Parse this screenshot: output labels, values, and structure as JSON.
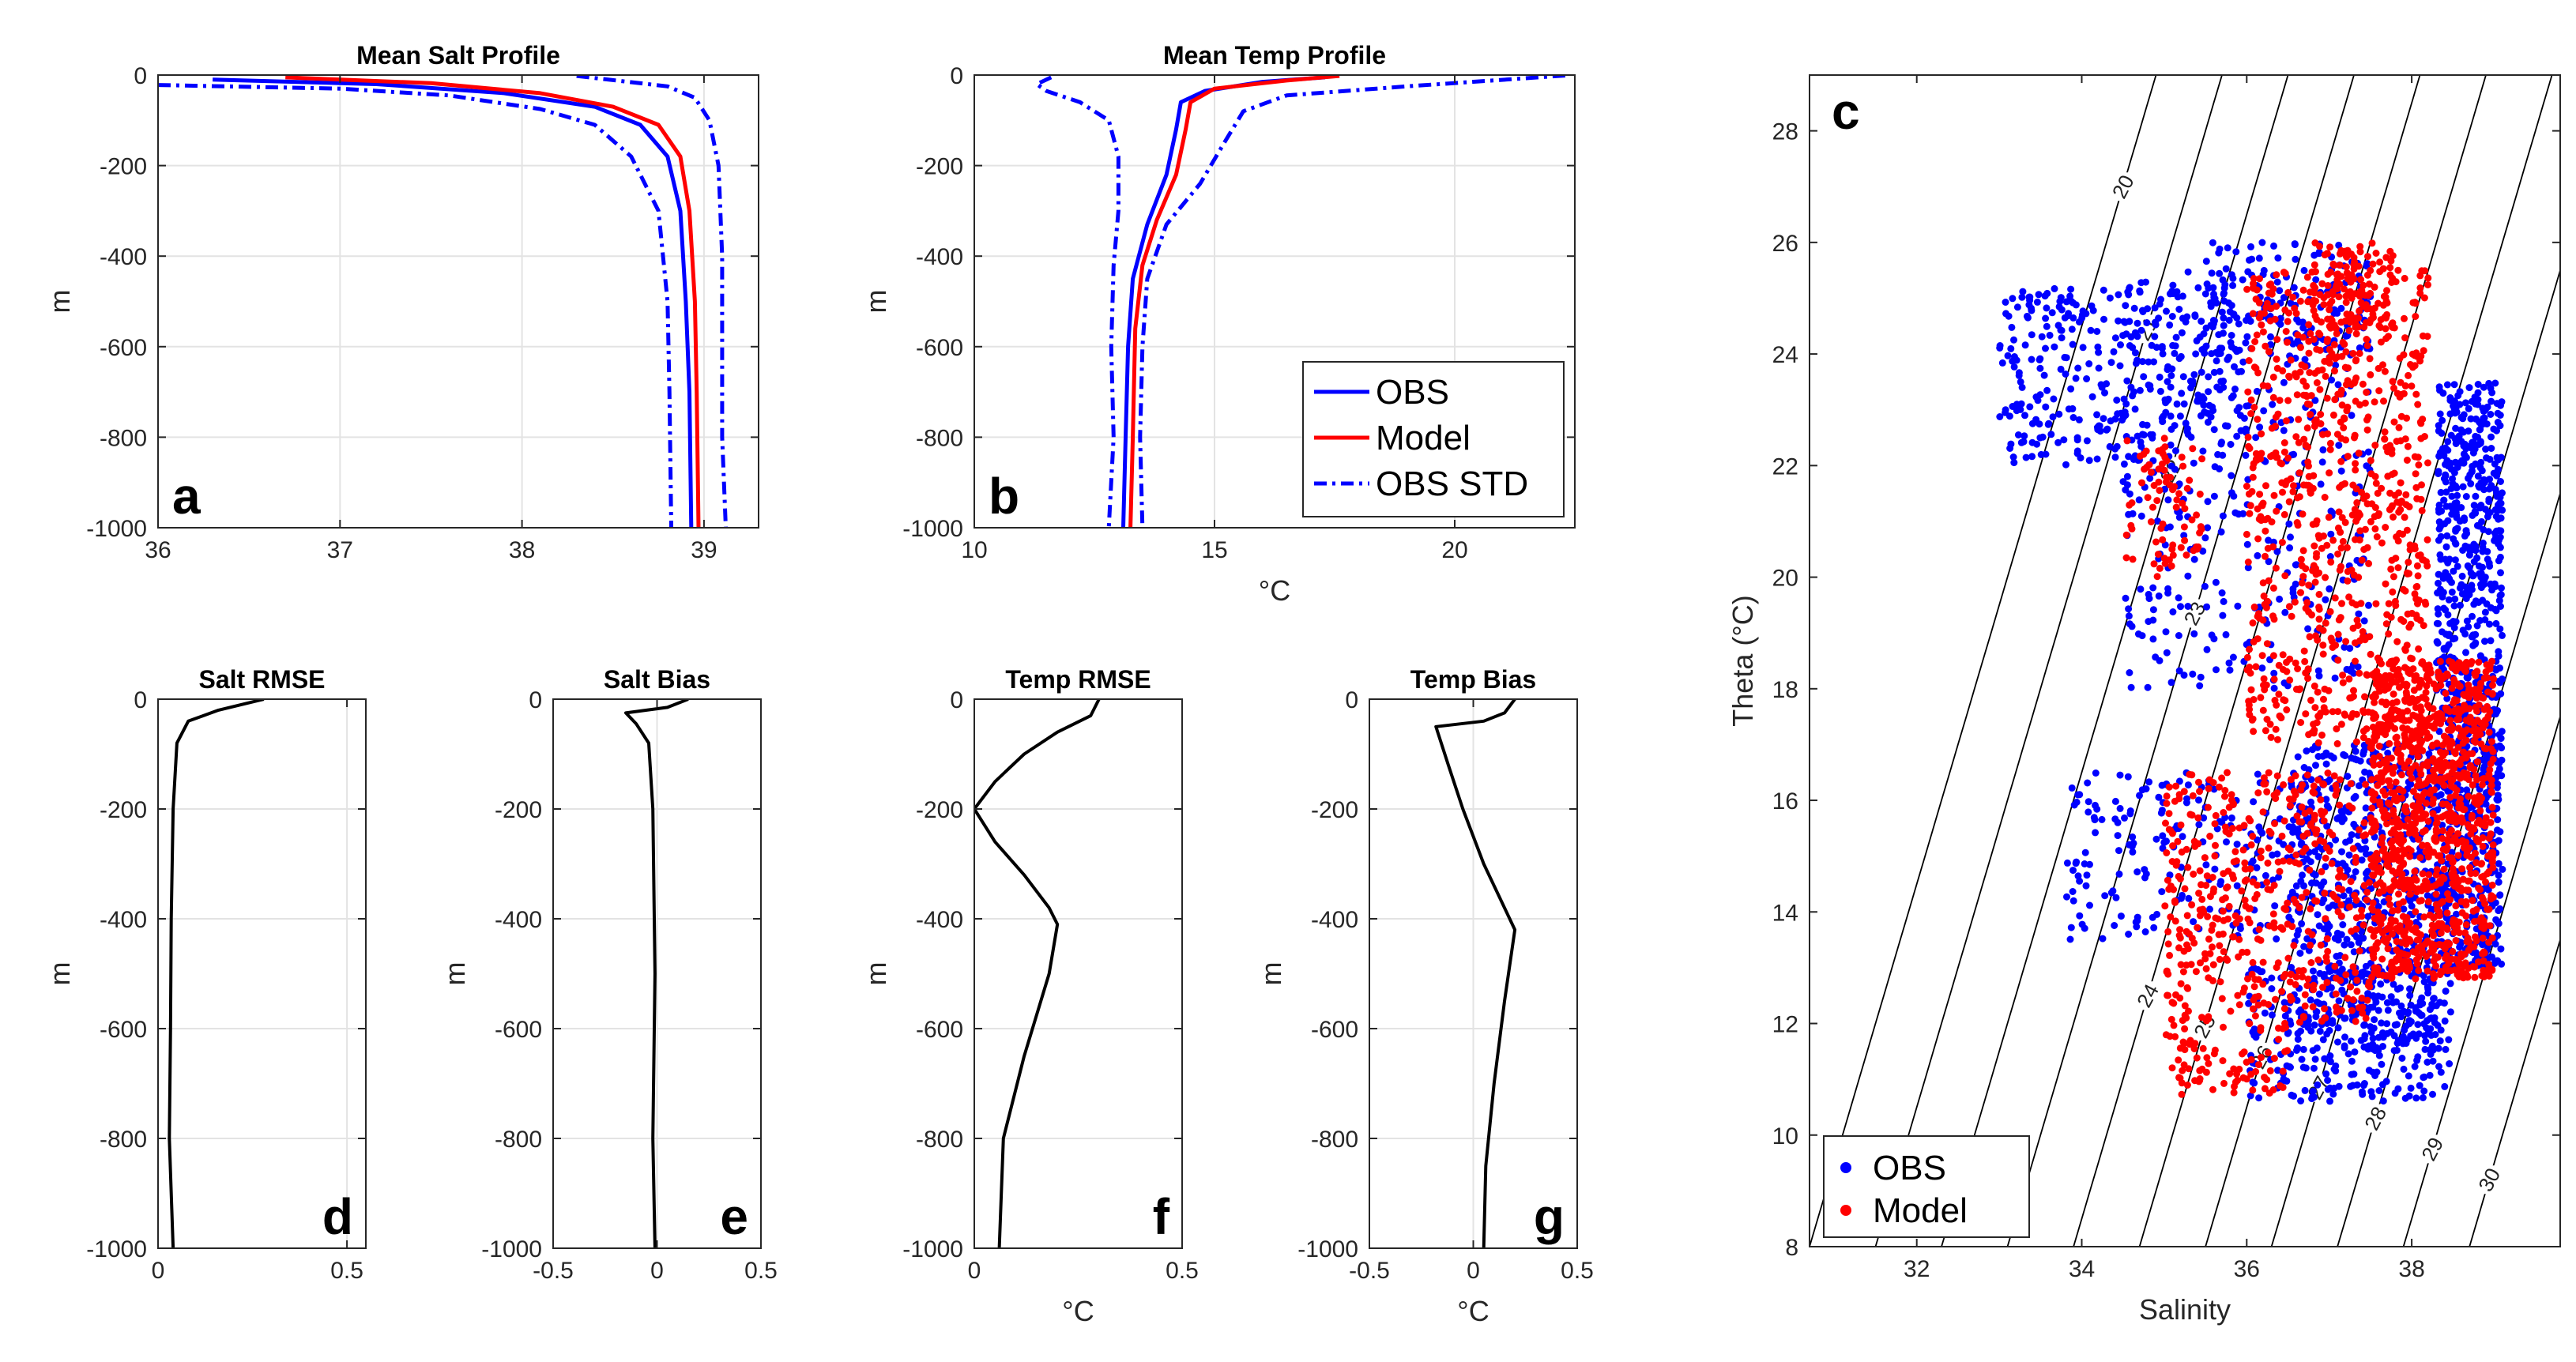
{
  "chart_data": [
    {
      "id": "a",
      "type": "line",
      "title": "Mean Salt Profile",
      "panel_label": "a",
      "xlabel": "",
      "ylabel": "m",
      "xlim": [
        36,
        39.3
      ],
      "ylim": [
        -1000,
        0
      ],
      "xticks": [
        36,
        37,
        38,
        39
      ],
      "yticks": [
        0,
        -200,
        -400,
        -600,
        -800,
        -1000
      ],
      "grid": true,
      "series": [
        {
          "name": "OBS",
          "color": "#0000ff",
          "style": "solid",
          "points": [
            [
              36.3,
              -10
            ],
            [
              37.2,
              -20
            ],
            [
              37.9,
              -40
            ],
            [
              38.4,
              -70
            ],
            [
              38.65,
              -110
            ],
            [
              38.8,
              -180
            ],
            [
              38.87,
              -300
            ],
            [
              38.9,
              -500
            ],
            [
              38.92,
              -700
            ],
            [
              38.93,
              -1000
            ]
          ]
        },
        {
          "name": "Model",
          "color": "#ff0000",
          "style": "solid",
          "points": [
            [
              36.7,
              -5
            ],
            [
              37.5,
              -18
            ],
            [
              38.1,
              -40
            ],
            [
              38.5,
              -70
            ],
            [
              38.75,
              -110
            ],
            [
              38.87,
              -180
            ],
            [
              38.92,
              -300
            ],
            [
              38.95,
              -500
            ],
            [
              38.96,
              -700
            ],
            [
              38.97,
              -1000
            ]
          ]
        },
        {
          "name": "OBS STD",
          "color": "#0000ff",
          "style": "dashdot",
          "points": [
            [
              36.0,
              -22
            ],
            [
              37.0,
              -30
            ],
            [
              37.6,
              -45
            ],
            [
              38.1,
              -75
            ],
            [
              38.4,
              -110
            ],
            [
              38.6,
              -180
            ],
            [
              38.75,
              -300
            ],
            [
              38.8,
              -500
            ],
            [
              38.81,
              -700
            ],
            [
              38.82,
              -1000
            ]
          ]
        },
        {
          "name": "OBS STD",
          "color": "#0000ff",
          "style": "dashdot",
          "points": [
            [
              38.3,
              -2
            ],
            [
              38.8,
              -25
            ],
            [
              38.95,
              -50
            ],
            [
              39.03,
              -100
            ],
            [
              39.08,
              -200
            ],
            [
              39.1,
              -400
            ],
            [
              39.1,
              -600
            ],
            [
              39.1,
              -800
            ],
            [
              39.12,
              -1000
            ]
          ]
        }
      ]
    },
    {
      "id": "b",
      "type": "line",
      "title": "Mean Temp Profile",
      "panel_label": "b",
      "xlabel": "°C",
      "ylabel": "m",
      "xlim": [
        10,
        22.5
      ],
      "ylim": [
        -1000,
        0
      ],
      "xticks": [
        10,
        15,
        20
      ],
      "yticks": [
        0,
        -200,
        -400,
        -600,
        -800,
        -1000
      ],
      "grid": true,
      "series": [
        {
          "name": "OBS",
          "color": "#0000ff",
          "style": "solid",
          "points": [
            [
              17.3,
              -5
            ],
            [
              16.0,
              -15
            ],
            [
              14.8,
              -35
            ],
            [
              14.3,
              -60
            ],
            [
              14.2,
              -120
            ],
            [
              14.0,
              -220
            ],
            [
              13.6,
              -330
            ],
            [
              13.3,
              -450
            ],
            [
              13.2,
              -600
            ],
            [
              13.15,
              -800
            ],
            [
              13.1,
              -1000
            ]
          ]
        },
        {
          "name": "Model",
          "color": "#ff0000",
          "style": "solid",
          "points": [
            [
              17.6,
              -2
            ],
            [
              16.5,
              -12
            ],
            [
              15.0,
              -30
            ],
            [
              14.5,
              -60
            ],
            [
              14.4,
              -120
            ],
            [
              14.2,
              -220
            ],
            [
              13.8,
              -320
            ],
            [
              13.5,
              -420
            ],
            [
              13.35,
              -560
            ],
            [
              13.3,
              -800
            ],
            [
              13.25,
              -1000
            ]
          ]
        },
        {
          "name": "OBS STD",
          "color": "#0000ff",
          "style": "dashdot",
          "points": [
            [
              11.6,
              -5
            ],
            [
              11.3,
              -20
            ],
            [
              11.5,
              -35
            ],
            [
              12.2,
              -60
            ],
            [
              12.8,
              -100
            ],
            [
              13.0,
              -180
            ],
            [
              13.0,
              -300
            ],
            [
              12.9,
              -420
            ],
            [
              12.85,
              -600
            ],
            [
              12.9,
              -800
            ],
            [
              12.8,
              -1000
            ]
          ]
        },
        {
          "name": "OBS STD",
          "color": "#0000ff",
          "style": "dashdot",
          "points": [
            [
              22.3,
              -1
            ],
            [
              19.0,
              -25
            ],
            [
              16.5,
              -45
            ],
            [
              15.6,
              -80
            ],
            [
              15.2,
              -150
            ],
            [
              14.7,
              -240
            ],
            [
              14.0,
              -330
            ],
            [
              13.6,
              -450
            ],
            [
              13.5,
              -600
            ],
            [
              13.45,
              -800
            ],
            [
              13.5,
              -1000
            ]
          ]
        }
      ],
      "legend": {
        "placement": "bottom-right",
        "entries": [
          {
            "label": "OBS",
            "color": "#0000ff",
            "style": "solid"
          },
          {
            "label": "Model",
            "color": "#ff0000",
            "style": "solid"
          },
          {
            "label": "OBS STD",
            "color": "#0000ff",
            "style": "dashdot"
          }
        ]
      }
    },
    {
      "id": "d",
      "type": "line",
      "title": "Salt RMSE",
      "panel_label": "d",
      "xlabel": "",
      "ylabel": "m",
      "xlim": [
        0,
        0.55
      ],
      "ylim": [
        -1000,
        0
      ],
      "xticks": [
        0,
        0.5
      ],
      "yticks": [
        0,
        -200,
        -400,
        -600,
        -800,
        -1000
      ],
      "grid": true,
      "series": [
        {
          "name": "Salt RMSE",
          "color": "#000000",
          "style": "solid",
          "points": [
            [
              0.28,
              0
            ],
            [
              0.16,
              -20
            ],
            [
              0.08,
              -40
            ],
            [
              0.05,
              -80
            ],
            [
              0.04,
              -200
            ],
            [
              0.035,
              -400
            ],
            [
              0.033,
              -600
            ],
            [
              0.03,
              -800
            ],
            [
              0.04,
              -1000
            ]
          ]
        }
      ]
    },
    {
      "id": "e",
      "type": "line",
      "title": "Salt Bias",
      "panel_label": "e",
      "xlabel": "",
      "ylabel": "m",
      "xlim": [
        -0.5,
        0.5
      ],
      "ylim": [
        -1000,
        0
      ],
      "xticks": [
        -0.5,
        0,
        0.5
      ],
      "yticks": [
        0,
        -200,
        -400,
        -600,
        -800,
        -1000
      ],
      "grid": true,
      "series": [
        {
          "name": "Salt Bias",
          "color": "#000000",
          "style": "solid",
          "points": [
            [
              0.15,
              0
            ],
            [
              0.05,
              -15
            ],
            [
              -0.15,
              -25
            ],
            [
              -0.1,
              -45
            ],
            [
              -0.04,
              -80
            ],
            [
              -0.02,
              -200
            ],
            [
              -0.01,
              -500
            ],
            [
              -0.02,
              -800
            ],
            [
              -0.01,
              -1000
            ]
          ]
        }
      ]
    },
    {
      "id": "f",
      "type": "line",
      "title": "Temp RMSE",
      "panel_label": "f",
      "xlabel": "°C",
      "ylabel": "m",
      "xlim": [
        0,
        0.5
      ],
      "ylim": [
        -1000,
        0
      ],
      "xticks": [
        0,
        0.5
      ],
      "yticks": [
        0,
        -200,
        -400,
        -600,
        -800,
        -1000
      ],
      "grid": true,
      "series": [
        {
          "name": "Temp RMSE",
          "color": "#000000",
          "style": "solid",
          "points": [
            [
              0.3,
              0
            ],
            [
              0.28,
              -30
            ],
            [
              0.2,
              -60
            ],
            [
              0.12,
              -100
            ],
            [
              0.05,
              -150
            ],
            [
              0.0,
              -200
            ],
            [
              0.05,
              -260
            ],
            [
              0.12,
              -320
            ],
            [
              0.18,
              -380
            ],
            [
              0.2,
              -410
            ],
            [
              0.18,
              -500
            ],
            [
              0.12,
              -650
            ],
            [
              0.07,
              -800
            ],
            [
              0.06,
              -1000
            ]
          ]
        }
      ]
    },
    {
      "id": "g",
      "type": "line",
      "title": "Temp Bias",
      "panel_label": "g",
      "xlabel": "°C",
      "ylabel": "m",
      "xlim": [
        -0.5,
        0.5
      ],
      "ylim": [
        -1000,
        0
      ],
      "xticks": [
        -0.5,
        0,
        0.5
      ],
      "yticks": [
        0,
        -200,
        -400,
        -600,
        -800,
        -1000
      ],
      "grid": true,
      "series": [
        {
          "name": "Temp Bias",
          "color": "#000000",
          "style": "solid",
          "points": [
            [
              0.2,
              0
            ],
            [
              0.15,
              -25
            ],
            [
              0.05,
              -40
            ],
            [
              -0.18,
              -50
            ],
            [
              -0.12,
              -120
            ],
            [
              -0.05,
              -200
            ],
            [
              0.05,
              -300
            ],
            [
              0.15,
              -380
            ],
            [
              0.2,
              -420
            ],
            [
              0.15,
              -550
            ],
            [
              0.1,
              -700
            ],
            [
              0.06,
              -850
            ],
            [
              0.05,
              -1000
            ]
          ]
        }
      ]
    },
    {
      "id": "c",
      "type": "scatter",
      "title": "",
      "panel_label": "c",
      "xlabel": "Salinity",
      "ylabel": "Theta (°C)",
      "xlim": [
        30.7,
        39.8
      ],
      "ylim": [
        8,
        29
      ],
      "xticks": [
        32,
        34,
        36,
        38
      ],
      "yticks": [
        8,
        10,
        12,
        14,
        16,
        18,
        20,
        22,
        24,
        26,
        28
      ],
      "grid": false,
      "density_contours": [
        20,
        21,
        22,
        23,
        24,
        25,
        26,
        27,
        28,
        29,
        30
      ],
      "series": [
        {
          "name": "OBS",
          "color": "#0000ff",
          "marker": "dot",
          "clusters": [
            {
              "s": [
                38.3,
                39.1
              ],
              "t": [
                13.0,
                23.5
              ],
              "n": 900
            },
            {
              "s": [
                36.5,
                38.3
              ],
              "t": [
                11.5,
                17.0
              ],
              "n": 600
            },
            {
              "s": [
                33.0,
                36.0
              ],
              "t": [
                22.0,
                25.2
              ],
              "n": 350
            },
            {
              "s": [
                34.5,
                37.5
              ],
              "t": [
                18.0,
                25.5
              ],
              "n": 350
            },
            {
              "s": [
                33.8,
                36.5
              ],
              "t": [
                13.5,
                16.5
              ],
              "n": 180
            },
            {
              "s": [
                36.0,
                38.5
              ],
              "t": [
                10.6,
                13.0
              ],
              "n": 250
            },
            {
              "s": [
                35.5,
                37.5
              ],
              "t": [
                24.0,
                26.0
              ],
              "n": 120
            }
          ]
        },
        {
          "name": "Model",
          "color": "#ff0000",
          "marker": "dot",
          "clusters": [
            {
              "s": [
                37.5,
                39.0
              ],
              "t": [
                12.8,
                18.5
              ],
              "n": 1100
            },
            {
              "s": [
                36.0,
                38.2
              ],
              "t": [
                17.0,
                25.5
              ],
              "n": 800
            },
            {
              "s": [
                35.0,
                37.5
              ],
              "t": [
                12.0,
                16.5
              ],
              "n": 450
            },
            {
              "s": [
                36.8,
                37.8
              ],
              "t": [
                24.5,
                26.0
              ],
              "n": 100
            },
            {
              "s": [
                35.0,
                36.5
              ],
              "t": [
                10.7,
                12.0
              ],
              "n": 80
            },
            {
              "s": [
                34.5,
                35.5
              ],
              "t": [
                20.0,
                22.5
              ],
              "n": 80
            }
          ]
        }
      ],
      "legend": {
        "placement": "bottom-left",
        "entries": [
          {
            "label": "OBS",
            "color": "#0000ff"
          },
          {
            "label": "Model",
            "color": "#ff0000"
          }
        ]
      }
    }
  ]
}
